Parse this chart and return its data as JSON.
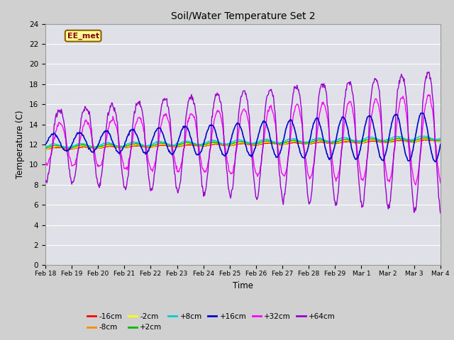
{
  "title": "Soil/Water Temperature Set 2",
  "xlabel": "Time",
  "ylabel": "Temperature (C)",
  "ylim": [
    0,
    24
  ],
  "yticks": [
    0,
    2,
    4,
    6,
    8,
    10,
    12,
    14,
    16,
    18,
    20,
    22,
    24
  ],
  "annotation": "EE_met",
  "series_colors": {
    "-16cm": "#ff0000",
    "-8cm": "#ff8c00",
    "-2cm": "#ffff00",
    "+2cm": "#00bb00",
    "+8cm": "#00cccc",
    "+16cm": "#0000cc",
    "+32cm": "#ff00ff",
    "+64cm": "#9900cc"
  },
  "tick_labels": [
    "Feb 18",
    "Feb 19",
    "Feb 20",
    "Feb 21",
    "Feb 22",
    "Feb 23",
    "Feb 24",
    "Feb 25",
    "Feb 26",
    "Feb 27",
    "Feb 28",
    "Feb 29",
    "Mar 1",
    "Mar 2",
    "Mar 3",
    "Mar 4"
  ],
  "fig_bg": "#d0d0d0",
  "plot_bg": "#e0e0e8",
  "grid_color": "#ffffff"
}
